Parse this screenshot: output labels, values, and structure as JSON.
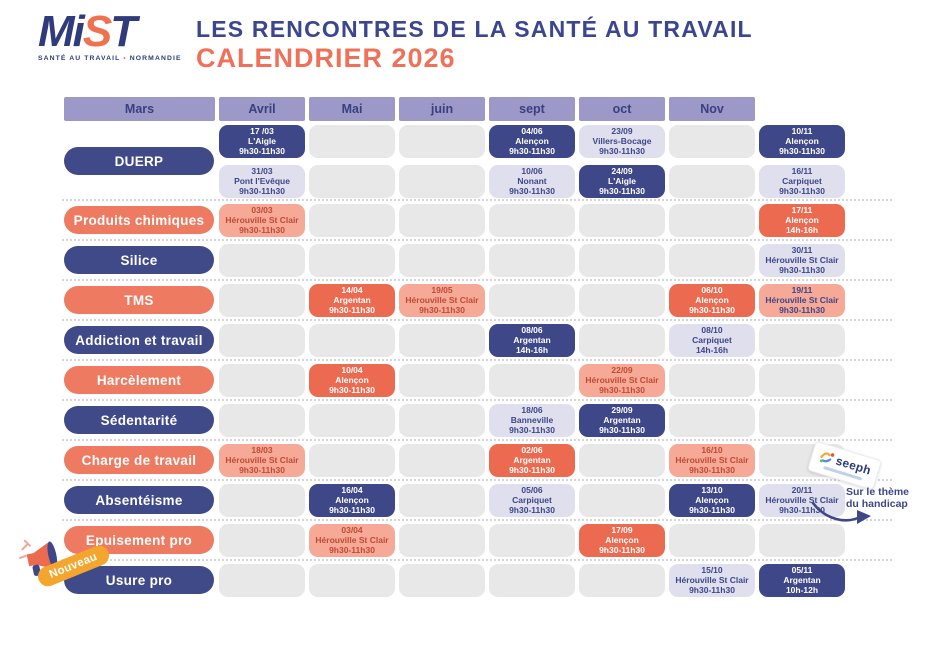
{
  "header": {
    "logo": {
      "l1": "M",
      "l2": "i",
      "l3": "S",
      "l4": "T",
      "tagline_left": "SANTÉ AU TRAVAIL",
      "bullet": "•",
      "tagline_right": "NORMANDIE"
    },
    "title_line1": "LES RENCONTRES DE LA SANTÉ AU TRAVAIL",
    "title_line2": "CALENDRIER 2026"
  },
  "months": [
    "Mars",
    "Avril",
    "Mai",
    "juin",
    "sept",
    "oct",
    "Nov"
  ],
  "rows": [
    {
      "label": "DUERP",
      "label_style": "navy",
      "sub": [
        [
          {
            "date": "17 /03",
            "place": "L'Aigle",
            "time": "9h30-11h30",
            "variant": "navy"
          },
          null,
          null,
          {
            "date": "04/06",
            "place": "Alençon",
            "time": "9h30-11h30",
            "variant": "navy"
          },
          {
            "date": "23/09",
            "place": "Villers-Bocage",
            "time": "9h30-11h30",
            "variant": "lavender"
          },
          null,
          {
            "date": "10/11",
            "place": "Alençon",
            "time": "9h30-11h30",
            "variant": "navy"
          }
        ],
        [
          {
            "date": "31/03",
            "place": "Pont l'Evêque",
            "time": "9h30-11h30",
            "variant": "lavender"
          },
          null,
          null,
          {
            "date": "10/06",
            "place": "Nonant",
            "time": "9h30-11h30",
            "variant": "lavender"
          },
          {
            "date": "24/09",
            "place": "L'Aigle",
            "time": "9h30-11h30",
            "variant": "navy"
          },
          null,
          {
            "date": "16/11",
            "place": "Carpiquet",
            "time": "9h30-11h30",
            "variant": "lavender"
          }
        ]
      ]
    },
    {
      "label": "Produits chimiques",
      "label_style": "coral",
      "sub": [
        [
          {
            "date": "03/03",
            "place": "Hérouville St Clair",
            "time": "9h30-11h30",
            "variant": "pink"
          },
          null,
          null,
          null,
          null,
          null,
          {
            "date": "17/11",
            "place": "Alençon",
            "time": "14h-16h",
            "variant": "coral"
          }
        ]
      ]
    },
    {
      "label": "Silice",
      "label_style": "navy",
      "sub": [
        [
          null,
          null,
          null,
          null,
          null,
          null,
          {
            "date": "30/11",
            "place": "Hérouville St Clair",
            "time": "9h30-11h30",
            "variant": "lavender"
          }
        ]
      ]
    },
    {
      "label": "TMS",
      "label_style": "coral",
      "sub": [
        [
          null,
          {
            "date": "14/04",
            "place": "Argentan",
            "time": "9h30-11h30",
            "variant": "coral"
          },
          {
            "date": "19/05",
            "place": "Hérouville St Clair",
            "time": "9h30-11h30",
            "variant": "pink"
          },
          null,
          null,
          {
            "date": "06/10",
            "place": "Alençon",
            "time": "9h30-11h30",
            "variant": "coral"
          },
          {
            "date": "19/11",
            "place": "Hérouville St Clair",
            "time": "9h30-11h30",
            "variant": "pink-navy"
          }
        ]
      ]
    },
    {
      "label": "Addiction et travail",
      "label_style": "navy",
      "sub": [
        [
          null,
          null,
          null,
          {
            "date": "08/06",
            "place": "Argentan",
            "time": "14h-16h",
            "variant": "navy"
          },
          null,
          {
            "date": "08/10",
            "place": "Carpiquet",
            "time": "14h-16h",
            "variant": "lavender"
          },
          null
        ]
      ]
    },
    {
      "label": "Harcèlement",
      "label_style": "coral",
      "sub": [
        [
          null,
          {
            "date": "10/04",
            "place": "Alençon",
            "time": "9h30-11h30",
            "variant": "coral"
          },
          null,
          null,
          {
            "date": "22/09",
            "place": "Hérouville St Clair",
            "time": "9h30-11h30",
            "variant": "pink"
          },
          null,
          null
        ]
      ]
    },
    {
      "label": "Sédentarité",
      "label_style": "navy",
      "sub": [
        [
          null,
          null,
          null,
          {
            "date": "18/06",
            "place": "Banneville",
            "time": "9h30-11h30",
            "variant": "lavender"
          },
          {
            "date": "29/09",
            "place": "Argentan",
            "time": "9h30-11h30",
            "variant": "navy"
          },
          null,
          null
        ]
      ]
    },
    {
      "label": "Charge de travail",
      "label_style": "coral",
      "sub": [
        [
          {
            "date": "18/03",
            "place": "Hérouville St Clair",
            "time": "9h30-11h30",
            "variant": "pink"
          },
          null,
          null,
          {
            "date": "02/06",
            "place": "Argentan",
            "time": "9h30-11h30",
            "variant": "coral"
          },
          null,
          {
            "date": "16/10",
            "place": "Hérouville St Clair",
            "time": "9h30-11h30",
            "variant": "pink"
          },
          null
        ]
      ]
    },
    {
      "label": "Absentéisme",
      "label_style": "navy",
      "sub": [
        [
          null,
          {
            "date": "16/04",
            "place": "Alençon",
            "time": "9h30-11h30",
            "variant": "navy"
          },
          null,
          {
            "date": "05/06",
            "place": "Carpiquet",
            "time": "9h30-11h30",
            "variant": "lavender"
          },
          null,
          {
            "date": "13/10",
            "place": "Alençon",
            "time": "9h30-11h30",
            "variant": "navy"
          },
          {
            "date": "20/11",
            "place": "Hérouville St Clair",
            "time": "9h30-11h30",
            "variant": "lavender"
          }
        ]
      ]
    },
    {
      "label": "Epuisement pro",
      "label_style": "coral",
      "sub": [
        [
          null,
          {
            "date": "03/04",
            "place": "Hérouville St Clair",
            "time": "9h30-11h30",
            "variant": "pink"
          },
          null,
          null,
          {
            "date": "17/09",
            "place": "Alençon",
            "time": "9h30-11h30",
            "variant": "coral"
          },
          null,
          null
        ]
      ]
    },
    {
      "label": "Usure pro",
      "label_style": "navy",
      "sub": [
        [
          null,
          null,
          null,
          null,
          null,
          {
            "date": "15/10",
            "place": "Hérouville St Clair",
            "time": "9h30-11h30",
            "variant": "lavender"
          },
          {
            "date": "05/11",
            "place": "Argentan",
            "time": "10h-12h",
            "variant": "navy"
          }
        ]
      ]
    }
  ],
  "annotations": {
    "nouveau_badge": "Nouveau",
    "seeph_label": "seeph",
    "handicap_note_line1": "Sur le thème",
    "handicap_note_line2": "du handicap"
  },
  "colors": {
    "navy": "#3E4787",
    "coral": "#EC6A50",
    "coral_label": "#EE7A61",
    "pink": "#F5A996",
    "pink_text": "#C04A36",
    "lavender": "#DFDFEE",
    "empty_cell": "#E8E8E8",
    "header_purple": "#9C98C8",
    "title_navy": "#3B4690",
    "title_coral": "#F0715A",
    "nouveau_orange": "#F4A52E"
  }
}
